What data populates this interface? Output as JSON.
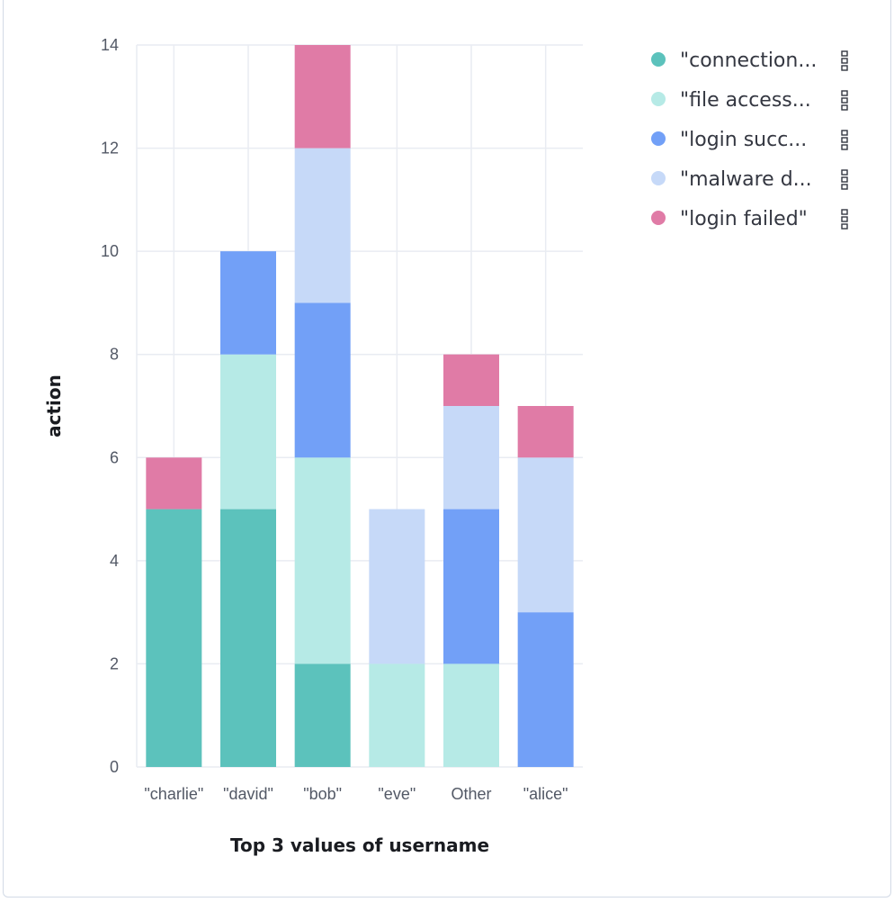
{
  "chart_data": {
    "type": "bar",
    "stacked": true,
    "categories": [
      "\"charlie\"",
      "\"david\"",
      "\"bob\"",
      "\"eve\"",
      "Other",
      "\"alice\""
    ],
    "series": [
      {
        "name": "\"connection...",
        "color": "#5cc2bc",
        "values": [
          5,
          5,
          2,
          0,
          0,
          0
        ]
      },
      {
        "name": "\"file access...",
        "color": "#b6eae6",
        "values": [
          0,
          3,
          4,
          2,
          2,
          0
        ]
      },
      {
        "name": "\"login succ...",
        "color": "#72a0f7",
        "values": [
          0,
          2,
          3,
          0,
          3,
          3
        ]
      },
      {
        "name": "\"malware d...",
        "color": "#c6d9f8",
        "values": [
          0,
          0,
          3,
          3,
          2,
          3
        ]
      },
      {
        "name": "\"login failed\"",
        "color": "#e07ba6",
        "values": [
          1,
          0,
          2,
          0,
          1,
          1
        ]
      }
    ],
    "yticks": [
      0,
      2,
      4,
      6,
      8,
      10,
      12,
      14
    ],
    "ylim": [
      0,
      14
    ],
    "xlabel": "Top 3 values of username",
    "ylabel": "action",
    "grid": true,
    "legend_position": "top-right"
  }
}
